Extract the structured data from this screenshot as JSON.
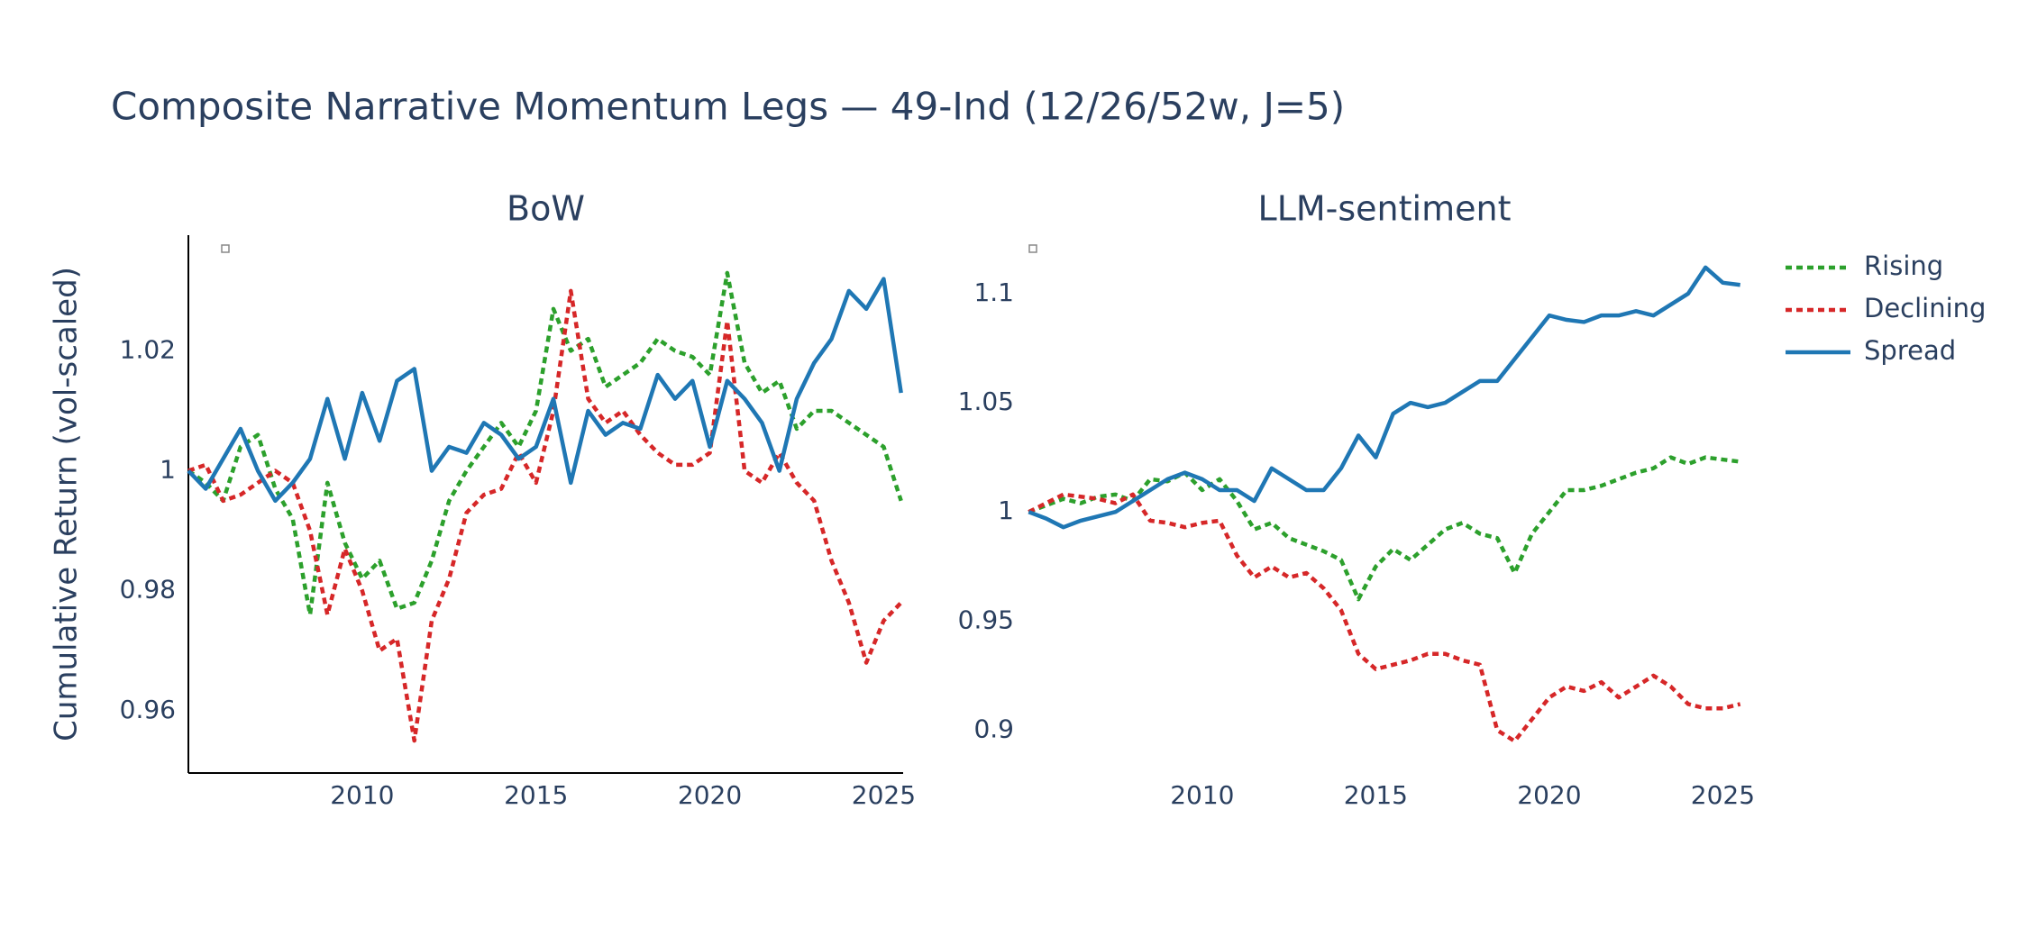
{
  "title": "Composite Narrative Momentum Legs — 49-Ind (12/26/52w, J=5)",
  "chart_data": [
    {
      "type": "line",
      "title": "BoW",
      "ylabel": "Cumulative Return (vol-scaled)",
      "axis_lines": true,
      "xlim": [
        2005,
        2025.56
      ],
      "ylim": [
        0.9496,
        1.0393
      ],
      "xticks": [
        2010,
        2015,
        2020,
        2025
      ],
      "yticks": [
        0.96,
        0.98,
        1,
        1.02
      ],
      "x": [
        2005,
        2005.5,
        2006,
        2006.5,
        2007,
        2007.5,
        2008,
        2008.5,
        2009,
        2009.5,
        2010,
        2010.5,
        2011,
        2011.5,
        2012,
        2012.5,
        2013,
        2013.5,
        2014,
        2014.5,
        2015,
        2015.5,
        2016,
        2016.5,
        2017,
        2017.5,
        2018,
        2018.5,
        2019,
        2019.5,
        2020,
        2020.5,
        2021,
        2021.5,
        2022,
        2022.5,
        2023,
        2023.5,
        2024,
        2024.5,
        2025,
        2025.5
      ],
      "series": [
        {
          "name": "Rising",
          "color": "#2ca02c",
          "dash": "dot",
          "values": [
            1.0,
            0.998,
            0.995,
            1.004,
            1.006,
            0.997,
            0.992,
            0.976,
            0.998,
            0.988,
            0.982,
            0.985,
            0.977,
            0.978,
            0.985,
            0.995,
            1.0,
            1.004,
            1.008,
            1.004,
            1.01,
            1.027,
            1.02,
            1.022,
            1.014,
            1.016,
            1.018,
            1.022,
            1.02,
            1.019,
            1.016,
            1.033,
            1.018,
            1.013,
            1.015,
            1.007,
            1.01,
            1.01,
            1.008,
            1.006,
            1.004,
            0.995
          ]
        },
        {
          "name": "Declining",
          "color": "#d62728",
          "dash": "dot",
          "values": [
            1.0,
            1.001,
            0.995,
            0.996,
            0.998,
            1.0,
            0.998,
            0.99,
            0.976,
            0.987,
            0.98,
            0.97,
            0.972,
            0.955,
            0.975,
            0.982,
            0.993,
            0.996,
            0.997,
            1.003,
            0.998,
            1.01,
            1.03,
            1.012,
            1.008,
            1.01,
            1.006,
            1.003,
            1.001,
            1.001,
            1.003,
            1.025,
            1.0,
            0.998,
            1.003,
            0.998,
            0.995,
            0.985,
            0.978,
            0.968,
            0.975,
            0.978
          ]
        },
        {
          "name": "Spread",
          "color": "#1f77b4",
          "dash": "solid",
          "values": [
            1.0,
            0.997,
            1.002,
            1.007,
            1.0,
            0.995,
            0.998,
            1.002,
            1.012,
            1.002,
            1.013,
            1.005,
            1.015,
            1.017,
            1.0,
            1.004,
            1.003,
            1.008,
            1.006,
            1.002,
            1.004,
            1.012,
            0.998,
            1.01,
            1.006,
            1.008,
            1.007,
            1.016,
            1.012,
            1.015,
            1.004,
            1.015,
            1.012,
            1.008,
            1.0,
            1.012,
            1.018,
            1.022,
            1.03,
            1.027,
            1.032,
            1.013
          ]
        }
      ]
    },
    {
      "type": "line",
      "title": "LLM-sentiment",
      "axis_lines": false,
      "xlim": [
        2004.94,
        2025.56
      ],
      "ylim": [
        0.8804,
        1.1268
      ],
      "xticks": [
        2010,
        2015,
        2020,
        2025
      ],
      "yticks": [
        0.9,
        0.95,
        1,
        1.05,
        1.1
      ],
      "x": [
        2005,
        2005.5,
        2006,
        2006.5,
        2007,
        2007.5,
        2008,
        2008.5,
        2009,
        2009.5,
        2010,
        2010.5,
        2011,
        2011.5,
        2012,
        2012.5,
        2013,
        2013.5,
        2014,
        2014.5,
        2015,
        2015.5,
        2016,
        2016.5,
        2017,
        2017.5,
        2018,
        2018.5,
        2019,
        2019.5,
        2020,
        2020.5,
        2021,
        2021.5,
        2022,
        2022.5,
        2023,
        2023.5,
        2024,
        2024.5,
        2025,
        2025.5
      ],
      "series": [
        {
          "color": "#2ca02c",
          "dash": "dot",
          "values": [
            1.0,
            1.003,
            1.006,
            1.004,
            1.007,
            1.008,
            1.005,
            1.015,
            1.014,
            1.018,
            1.01,
            1.015,
            1.005,
            0.992,
            0.995,
            0.988,
            0.985,
            0.982,
            0.978,
            0.96,
            0.975,
            0.983,
            0.978,
            0.985,
            0.992,
            0.995,
            0.99,
            0.988,
            0.972,
            0.99,
            1.0,
            1.01,
            1.01,
            1.012,
            1.015,
            1.018,
            1.02,
            1.025,
            1.022,
            1.025,
            1.024,
            1.023
          ]
        },
        {
          "color": "#d62728",
          "dash": "dot",
          "values": [
            1.0,
            1.004,
            1.008,
            1.007,
            1.006,
            1.004,
            1.008,
            0.996,
            0.995,
            0.993,
            0.995,
            0.996,
            0.98,
            0.97,
            0.975,
            0.97,
            0.972,
            0.965,
            0.955,
            0.935,
            0.928,
            0.93,
            0.932,
            0.935,
            0.935,
            0.932,
            0.93,
            0.9,
            0.895,
            0.905,
            0.915,
            0.92,
            0.918,
            0.922,
            0.915,
            0.92,
            0.925,
            0.92,
            0.912,
            0.91,
            0.91,
            0.912
          ]
        },
        {
          "color": "#1f77b4",
          "dash": "solid",
          "values": [
            1.0,
            0.997,
            0.993,
            0.996,
            0.998,
            1.0,
            1.005,
            1.01,
            1.015,
            1.018,
            1.015,
            1.01,
            1.01,
            1.005,
            1.02,
            1.015,
            1.01,
            1.01,
            1.02,
            1.035,
            1.025,
            1.045,
            1.05,
            1.048,
            1.05,
            1.055,
            1.06,
            1.06,
            1.07,
            1.08,
            1.09,
            1.088,
            1.087,
            1.09,
            1.09,
            1.092,
            1.09,
            1.095,
            1.1,
            1.112,
            1.105,
            1.104
          ]
        }
      ]
    }
  ]
}
